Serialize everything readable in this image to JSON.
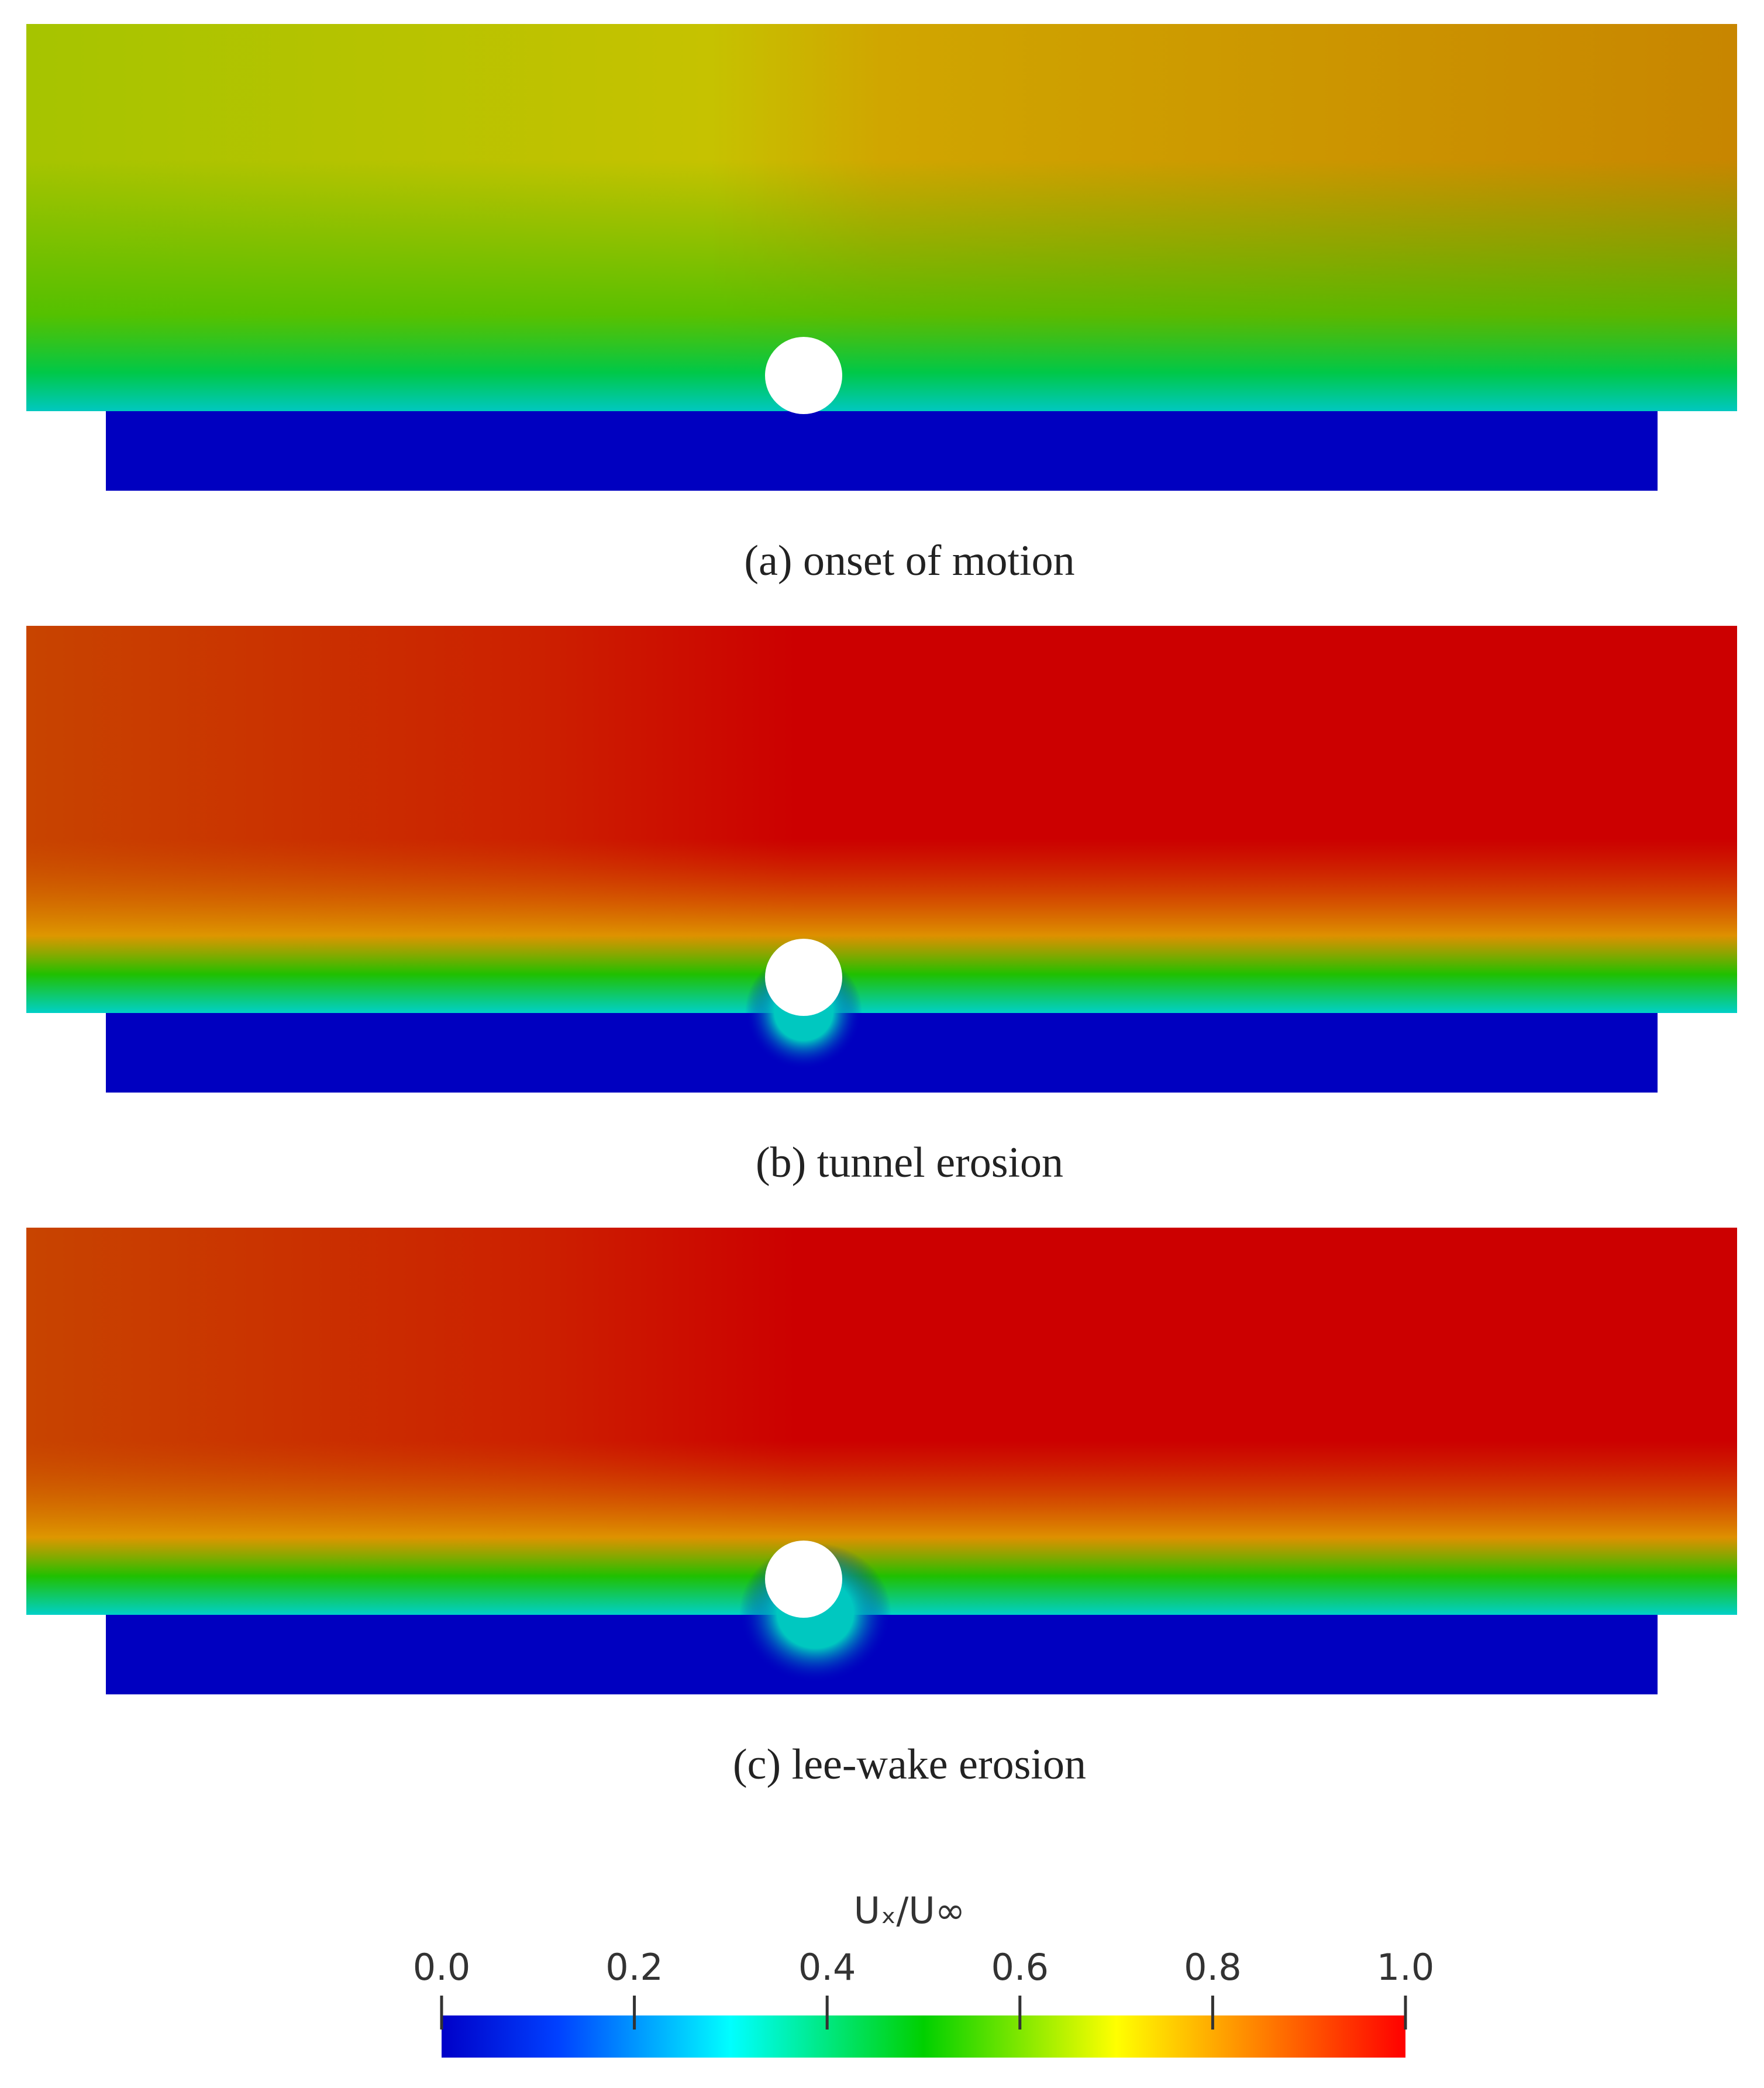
{
  "panels": [
    {
      "caption": "(a) onset of motion"
    },
    {
      "caption": "(b) tunnel erosion"
    },
    {
      "caption": "(c) lee-wake erosion"
    }
  ],
  "colorbar": {
    "title": "Uₓ/U∞",
    "lim": [
      0,
      1
    ],
    "ticks": [
      {
        "value": 0,
        "label": "0.0"
      },
      {
        "value": 0.2,
        "label": "0.2"
      },
      {
        "value": 0.4,
        "label": "0.4"
      },
      {
        "value": 0.6,
        "label": "0.6"
      },
      {
        "value": 0.8,
        "label": "0.8"
      },
      {
        "value": 1,
        "label": "1.0"
      }
    ]
  }
}
